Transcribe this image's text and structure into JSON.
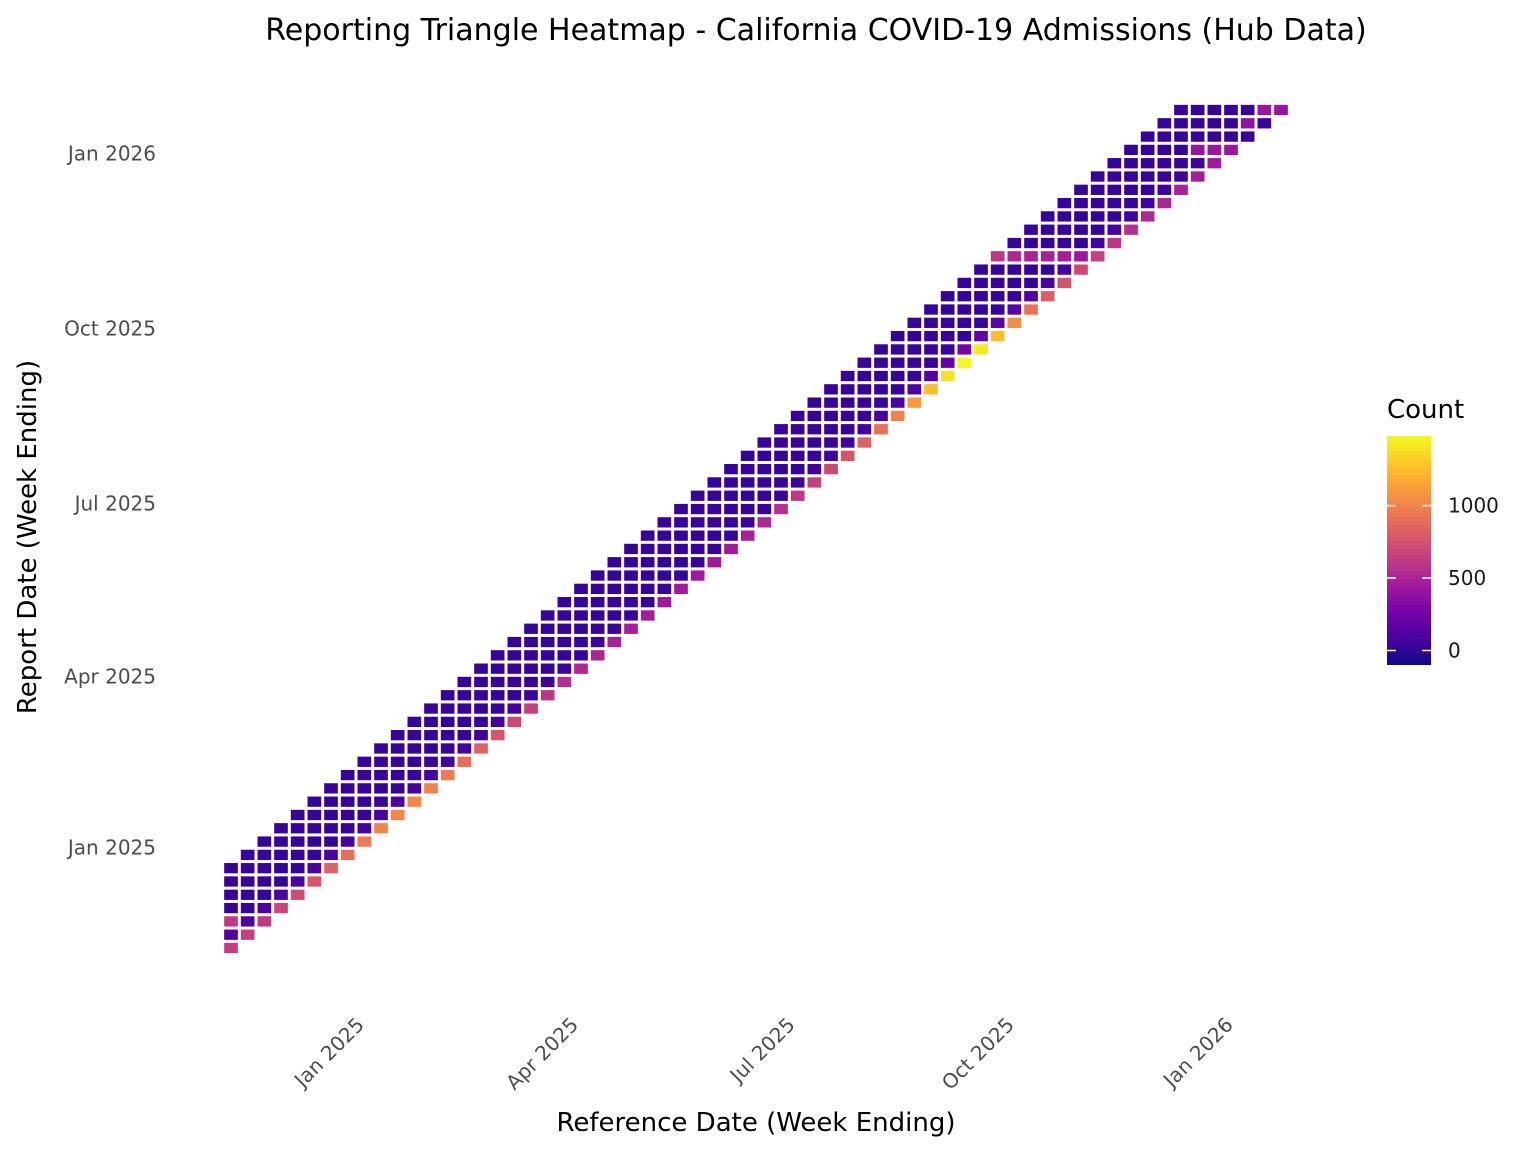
{
  "chart_data": {
    "type": "heatmap",
    "title": "Reporting Triangle Heatmap - California COVID-19 Admissions (Hub Data)",
    "xlabel": "Reference Date (Week Ending)",
    "ylabel": "Report Date (Week Ending)",
    "x_ticks": [
      {
        "label": "Jan 2025",
        "date": "2025-01-01"
      },
      {
        "label": "Apr 2025",
        "date": "2025-04-01"
      },
      {
        "label": "Jul 2025",
        "date": "2025-07-01"
      },
      {
        "label": "Oct 2025",
        "date": "2025-10-01"
      },
      {
        "label": "Jan 2026",
        "date": "2026-01-01"
      }
    ],
    "y_ticks": [
      {
        "label": "Jan 2025",
        "date": "2025-01-01"
      },
      {
        "label": "Apr 2025",
        "date": "2025-04-01"
      },
      {
        "label": "Jul 2025",
        "date": "2025-07-01"
      },
      {
        "label": "Oct 2025",
        "date": "2025-10-01"
      },
      {
        "label": "Jan 2026",
        "date": "2026-01-01"
      }
    ],
    "first_reference_date": "2024-11-09",
    "last_reference_date": "2026-01-24",
    "first_report_date": "2024-11-09",
    "last_report_date": "2026-01-24",
    "interval_days": 7,
    "max_delay_weeks": 6,
    "legend": {
      "title": "Count",
      "position": "right",
      "ticks": [
        0,
        500,
        1000
      ],
      "range": [
        -100,
        1480
      ],
      "colors": [
        "#0d0887",
        "#46039f",
        "#7201a8",
        "#9c179e",
        "#bd3786",
        "#d8576b",
        "#ed7953",
        "#fb9f3a",
        "#fdca26",
        "#f0f921"
      ]
    },
    "delay0_values": [
      650,
      650,
      620,
      680,
      720,
      760,
      830,
      900,
      960,
      1000,
      1020,
      1020,
      1000,
      960,
      900,
      830,
      760,
      700,
      650,
      600,
      560,
      530,
      500,
      480,
      470,
      460,
      450,
      450,
      440,
      440,
      450,
      480,
      520,
      560,
      600,
      650,
      700,
      760,
      830,
      900,
      1000,
      1100,
      1250,
      1400,
      1480,
      1420,
      1250,
      1050,
      920,
      820,
      760,
      700,
      650,
      600,
      560,
      520,
      500,
      480,
      460,
      440,
      420
    ],
    "delay1_values": [
      120,
      110,
      100,
      95,
      90,
      90,
      85,
      85,
      80,
      85,
      90,
      80,
      75,
      70,
      65,
      60,
      55,
      50,
      48,
      45,
      42,
      40,
      38,
      36,
      35,
      34,
      33,
      32,
      31,
      30,
      31,
      33,
      36,
      40,
      45,
      50,
      55,
      60,
      70,
      80,
      90,
      110,
      140,
      200,
      260,
      200,
      160,
      130,
      110,
      95,
      85,
      80,
      75,
      70,
      65,
      60,
      55,
      50,
      48,
      45
    ],
    "other_delay_value": 25,
    "special_cells": [
      {
        "reference_date": "2024-11-09",
        "report_date": "2024-11-23",
        "value": 620
      },
      {
        "reference_date": "2025-09-27",
        "report_date": "2025-11-08",
        "value": 600
      },
      {
        "reference_date": "2025-10-04",
        "report_date": "2025-11-08",
        "value": 520
      },
      {
        "reference_date": "2025-10-11",
        "report_date": "2025-11-08",
        "value": 500
      },
      {
        "reference_date": "2025-10-18",
        "report_date": "2025-11-08",
        "value": 480
      },
      {
        "reference_date": "2025-10-25",
        "report_date": "2025-11-08",
        "value": 460
      },
      {
        "reference_date": "2025-11-01",
        "report_date": "2025-11-08",
        "value": 430
      },
      {
        "reference_date": "2025-12-20",
        "report_date": "2026-01-03",
        "value": 400
      },
      {
        "reference_date": "2025-12-27",
        "report_date": "2026-01-03",
        "value": 420
      },
      {
        "reference_date": "2026-01-10",
        "report_date": "2026-01-17",
        "value": 380
      },
      {
        "reference_date": "2026-01-17",
        "report_date": "2026-01-24",
        "value": 420
      },
      {
        "reference_date": "2026-01-24",
        "report_date": "2026-01-24",
        "value": 400
      }
    ]
  }
}
